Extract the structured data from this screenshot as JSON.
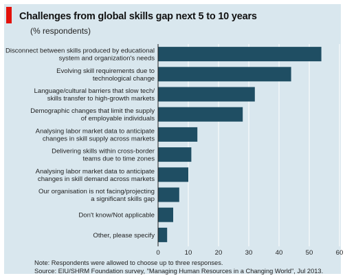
{
  "title": "Challenges from global skills gap next 5 to 10 years",
  "subtitle": "(% respondents)",
  "notes": {
    "note": "Note: Respondents were allowed to choose up to three responses.",
    "source": "Source: EIU/SHRM Foundation survey, \"Managing Human Resources in a Changing World\", Jul 2013."
  },
  "colors": {
    "background": "#d9e7ee",
    "bar": "#1f4e63",
    "accent": "#e3120b",
    "grid": "#ffffff"
  },
  "chart_data": {
    "type": "bar",
    "orientation": "horizontal",
    "categories": [
      [
        "Disconnect between skills produced by educational",
        "system and organization's needs"
      ],
      [
        "Evolving skill requirements due to",
        "technological change"
      ],
      [
        "Language/cultural barriers that slow tech/",
        "skills transfer to high-growth markets"
      ],
      [
        "Demographic changes that limit the supply",
        "of employable individuals"
      ],
      [
        "Analysing labor market data to anticipate",
        "changes in skill supply across markets"
      ],
      [
        "Delivering skills within cross-border",
        "teams due to time zones"
      ],
      [
        "Analysing labor market data to anticipate",
        "changes in skill demand across markets"
      ],
      [
        "Our organisation is not facing/projecting",
        "a significant skills gap"
      ],
      [
        "Don't know/Not applicable"
      ],
      [
        "Other, please specify"
      ]
    ],
    "values": [
      54,
      44,
      32,
      28,
      13,
      11,
      10,
      7,
      5,
      3
    ],
    "xlim": [
      0,
      60
    ],
    "xticks": [
      "0",
      "10",
      "20",
      "30",
      "40",
      "50",
      "60"
    ],
    "grid": true
  }
}
